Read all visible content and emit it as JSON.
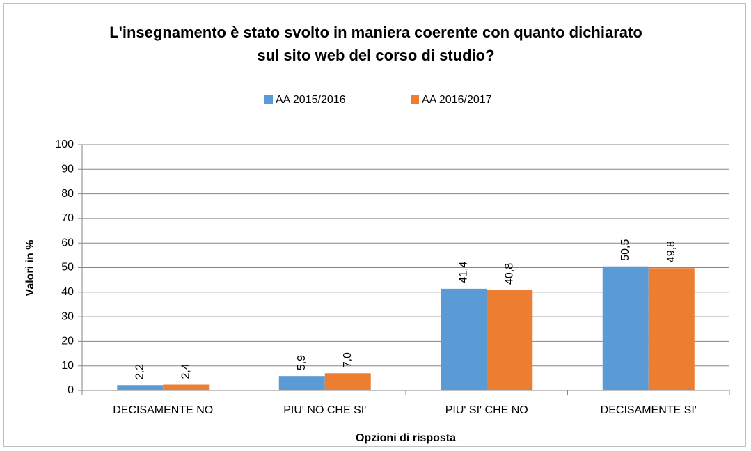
{
  "chart_data": {
    "type": "bar",
    "title": "L'insegnamento è stato svolto in maniera coerente con quanto dichiarato sul sito web del corso di studio?",
    "x_label": "Opzioni di risposta",
    "y_label": "Valori in %",
    "categories": [
      "DECISAMENTE NO",
      "PIU' NO CHE SI'",
      "PIU' SI' CHE NO",
      "DECISAMENTE SI'"
    ],
    "series": [
      {
        "name": "AA 2015/2016",
        "color": "#5b9bd5",
        "values": [
          2.2,
          5.9,
          41.4,
          50.5
        ],
        "value_labels": [
          "2,2",
          "5,9",
          "41,4",
          "50,5"
        ]
      },
      {
        "name": "AA 2016/2017",
        "color": "#ed7d31",
        "values": [
          2.4,
          7.0,
          40.8,
          49.8
        ],
        "value_labels": [
          "2,4",
          "7,0",
          "40,8",
          "49,8"
        ]
      }
    ],
    "ylim": [
      0,
      100
    ],
    "yticks": [
      0,
      10,
      20,
      30,
      40,
      50,
      60,
      70,
      80,
      90,
      100
    ],
    "grid": true,
    "legend": "top"
  }
}
